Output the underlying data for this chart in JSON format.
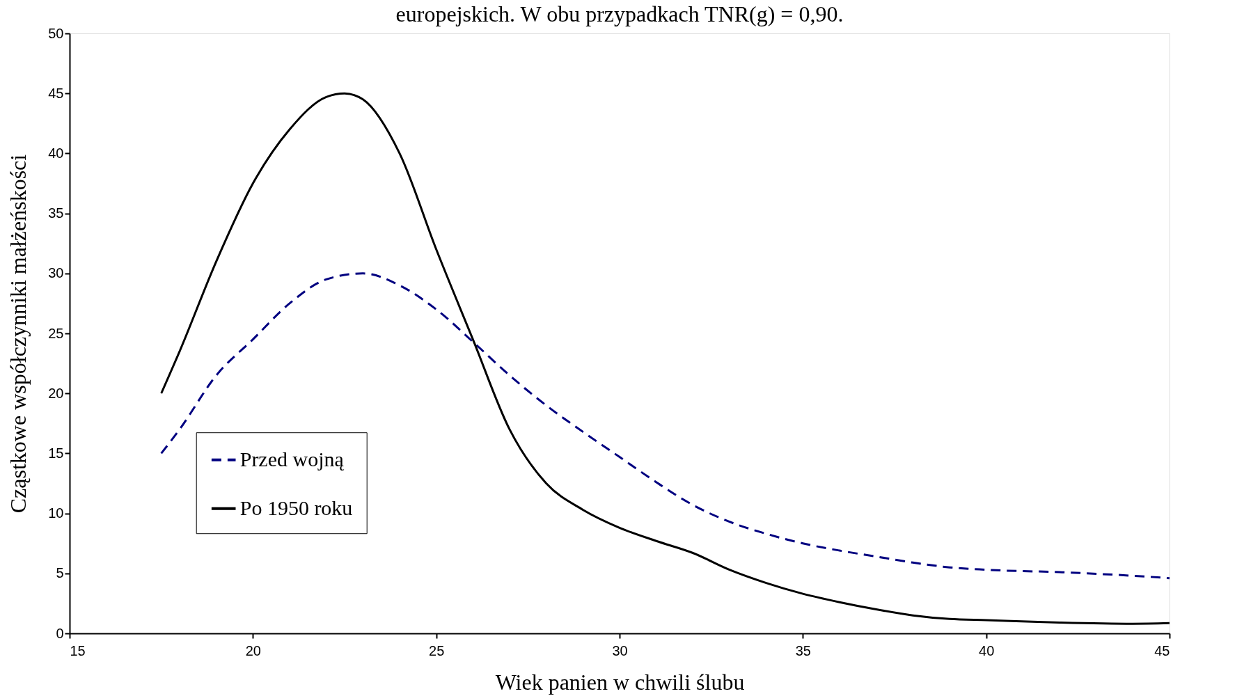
{
  "chart_data": {
    "type": "line",
    "title": "europejskich. W obu przypadkach TNR(g) = 0,90.",
    "xlabel": "Wiek panien w chwili ślubu",
    "ylabel": "Cząstkowe współczynniki małżeńskości",
    "xlim": [
      15,
      45
    ],
    "xticks": [
      15,
      20,
      25,
      30,
      35,
      40,
      45
    ],
    "ylim": [
      0,
      50
    ],
    "yticks": [
      0,
      5,
      10,
      15,
      20,
      25,
      30,
      35,
      40,
      45,
      50
    ],
    "grid": false,
    "legend": "bottom left",
    "marker": "none",
    "series": [
      {
        "name": "Przed wojną",
        "color": "#000080",
        "line_style": "dashed",
        "x": [
          17.5,
          18,
          19,
          20,
          21,
          22,
          23,
          24,
          25,
          26,
          27,
          28,
          29,
          30,
          31,
          32,
          33,
          34,
          35,
          36,
          37,
          38,
          39,
          40,
          42,
          44,
          45
        ],
        "values": [
          15,
          17,
          21.5,
          24.5,
          27.5,
          29.5,
          30,
          29,
          27,
          24.3,
          21.5,
          19,
          16.8,
          14.7,
          12.6,
          10.7,
          9.3,
          8.3,
          7.5,
          6.9,
          6.4,
          5.9,
          5.5,
          5.3,
          5.1,
          4.8,
          4.6
        ]
      },
      {
        "name": "Po 1950 roku",
        "color": "#000000",
        "line_style": "solid",
        "x": [
          17.5,
          18,
          19,
          20,
          21,
          22,
          22.5,
          23,
          24,
          25,
          26,
          27,
          28,
          29,
          30,
          31,
          32,
          33,
          34,
          35,
          36,
          37,
          38,
          39,
          40,
          42,
          44,
          45
        ],
        "values": [
          20,
          23.5,
          31,
          37.5,
          42,
          44.7,
          45,
          44.5,
          40,
          32,
          24.5,
          17,
          12.5,
          10.3,
          8.8,
          7.7,
          6.7,
          5.3,
          4.2,
          3.3,
          2.6,
          2,
          1.5,
          1.2,
          1.1,
          0.9,
          0.8,
          0.85
        ]
      }
    ]
  }
}
